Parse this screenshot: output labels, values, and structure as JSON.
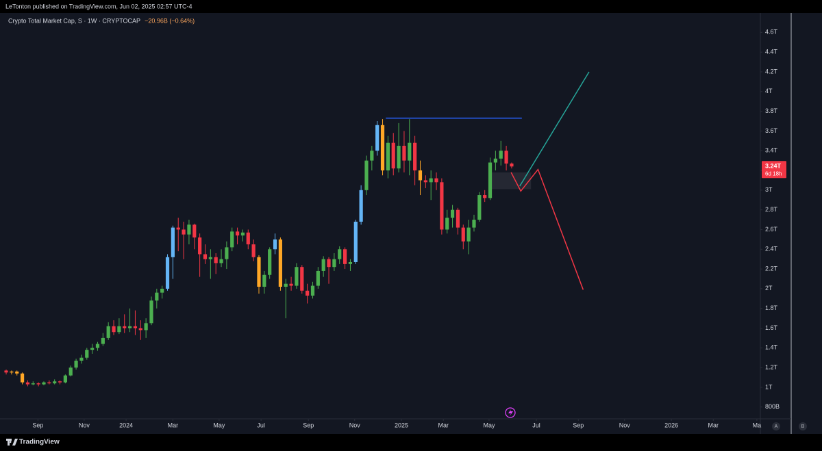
{
  "header": {
    "text": "LeTonton published on TradingView.com, Jun 02, 2025 02:57 UTC-4"
  },
  "footer": {
    "brand": "TradingView",
    "axis_buttons": [
      "A",
      "B"
    ]
  },
  "chart_data": {
    "type": "candlestick",
    "title": "Crypto Total Market Cap, S · 1W · CRYPTOCAP",
    "change": "−20.96B (−0.64%)",
    "last_price_label": "3.24T",
    "countdown": "6d 18h",
    "last_price_color": "#f23645",
    "xlim": [
      -1.15,
      140.25
    ],
    "xticks": [
      {
        "value": 5.9,
        "label": "Sep"
      },
      {
        "value": 14.5,
        "label": "Nov"
      },
      {
        "value": 22.3,
        "label": "2024"
      },
      {
        "value": 31.0,
        "label": "Mar"
      },
      {
        "value": 39.6,
        "label": "May"
      },
      {
        "value": 47.4,
        "label": "Jul"
      },
      {
        "value": 56.2,
        "label": "Sep"
      },
      {
        "value": 64.8,
        "label": "Nov"
      },
      {
        "value": 73.5,
        "label": "2025"
      },
      {
        "value": 81.3,
        "label": "Mar"
      },
      {
        "value": 89.8,
        "label": "May"
      },
      {
        "value": 98.6,
        "label": "Jul"
      },
      {
        "value": 106.4,
        "label": "Sep"
      },
      {
        "value": 115.0,
        "label": "Nov"
      },
      {
        "value": 123.7,
        "label": "2026"
      },
      {
        "value": 131.5,
        "label": "Mar"
      },
      {
        "value": 139.6,
        "label": "Ma"
      }
    ],
    "ylim": [
      0.68,
      4.79
    ],
    "yticks": [
      {
        "value": 4.6,
        "label": "4.6T"
      },
      {
        "value": 4.4,
        "label": "4.4T"
      },
      {
        "value": 4.2,
        "label": "4.2T"
      },
      {
        "value": 4.0,
        "label": "4T"
      },
      {
        "value": 3.8,
        "label": "3.8T"
      },
      {
        "value": 3.6,
        "label": "3.6T"
      },
      {
        "value": 3.4,
        "label": "3.4T"
      },
      {
        "value": 3.2,
        "label": "3.2T"
      },
      {
        "value": 3.0,
        "label": "3T"
      },
      {
        "value": 2.8,
        "label": "2.8T"
      },
      {
        "value": 2.6,
        "label": "2.6T"
      },
      {
        "value": 2.4,
        "label": "2.4T"
      },
      {
        "value": 2.2,
        "label": "2.2T"
      },
      {
        "value": 2.0,
        "label": "2T"
      },
      {
        "value": 1.8,
        "label": "1.8T"
      },
      {
        "value": 1.6,
        "label": "1.6T"
      },
      {
        "value": 1.4,
        "label": "1.4T"
      },
      {
        "value": 1.2,
        "label": "1.2T"
      },
      {
        "value": 1.0,
        "label": "1T"
      },
      {
        "value": 0.8,
        "label": "800B"
      }
    ],
    "grid": false,
    "open": [
      1.17,
      1.15,
      1.16,
      1.14,
      1.05,
      1.03,
      1.04,
      1.03,
      1.05,
      1.04,
      1.06,
      1.05,
      1.12,
      1.2,
      1.27,
      1.3,
      1.38,
      1.4,
      1.44,
      1.5,
      1.62,
      1.56,
      1.62,
      1.6,
      1.62,
      1.6,
      1.58,
      1.65,
      1.88,
      1.96,
      2.0,
      2.32,
      2.62,
      2.6,
      2.55,
      2.65,
      2.52,
      2.35,
      2.3,
      2.32,
      2.26,
      2.3,
      2.42,
      2.58,
      2.54,
      2.57,
      2.45,
      2.32,
      2.02,
      2.14,
      2.4,
      2.5,
      2.02,
      2.05,
      2.03,
      2.22,
      1.98,
      1.93,
      2.03,
      2.18,
      2.3,
      2.22,
      2.3,
      2.4,
      2.25,
      2.27,
      2.68,
      3.0,
      3.3,
      3.4,
      3.66,
      3.2,
      3.48,
      3.22,
      3.45,
      3.3,
      3.48,
      3.2,
      3.1,
      3.08,
      3.12,
      3.08,
      2.6,
      2.72,
      2.8,
      2.62,
      2.48,
      2.62,
      2.7,
      2.95,
      2.92,
      3.28,
      3.32,
      3.4,
      3.27
    ],
    "high": [
      1.18,
      1.17,
      1.17,
      1.15,
      1.07,
      1.06,
      1.05,
      1.06,
      1.07,
      1.08,
      1.07,
      1.13,
      1.22,
      1.29,
      1.33,
      1.4,
      1.44,
      1.46,
      1.55,
      1.66,
      1.68,
      1.7,
      1.74,
      1.8,
      1.78,
      1.68,
      1.7,
      1.92,
      2.0,
      2.03,
      2.35,
      2.64,
      2.72,
      2.68,
      2.7,
      2.66,
      2.56,
      2.45,
      2.4,
      2.36,
      2.4,
      2.48,
      2.62,
      2.62,
      2.6,
      2.6,
      2.5,
      2.34,
      2.18,
      2.42,
      2.56,
      2.52,
      2.1,
      2.12,
      2.26,
      2.24,
      2.05,
      2.07,
      2.22,
      2.33,
      2.32,
      2.36,
      2.43,
      2.42,
      2.3,
      2.7,
      3.05,
      3.35,
      3.45,
      3.7,
      3.72,
      3.55,
      3.58,
      3.68,
      3.6,
      3.72,
      3.55,
      3.3,
      3.15,
      3.2,
      3.18,
      3.12,
      2.8,
      2.85,
      2.82,
      2.65,
      2.7,
      2.75,
      2.98,
      3.0,
      3.33,
      3.4,
      3.5,
      3.45,
      3.28
    ],
    "low": [
      1.13,
      1.13,
      1.12,
      1.03,
      1.01,
      1.02,
      1.01,
      1.02,
      1.03,
      1.03,
      1.03,
      1.04,
      1.11,
      1.18,
      1.24,
      1.28,
      1.34,
      1.37,
      1.42,
      1.48,
      1.53,
      1.54,
      1.55,
      1.56,
      1.53,
      1.48,
      1.5,
      1.63,
      1.8,
      1.9,
      1.98,
      2.1,
      2.38,
      2.3,
      2.45,
      2.4,
      2.12,
      2.25,
      2.1,
      2.15,
      2.22,
      2.2,
      2.38,
      2.45,
      2.48,
      2.4,
      2.28,
      1.95,
      1.95,
      2.1,
      2.35,
      1.98,
      1.7,
      1.98,
      2.0,
      1.95,
      1.85,
      1.9,
      2.0,
      2.12,
      2.05,
      2.18,
      2.25,
      2.2,
      2.18,
      2.25,
      2.65,
      2.95,
      3.2,
      3.35,
      3.15,
      3.12,
      3.15,
      3.18,
      3.18,
      3.15,
      3.05,
      2.95,
      3.02,
      2.9,
      3.0,
      2.55,
      2.56,
      2.62,
      2.55,
      2.4,
      2.35,
      2.58,
      2.68,
      2.88,
      2.9,
      3.2,
      3.25,
      3.2,
      3.22
    ],
    "close": [
      1.15,
      1.16,
      1.14,
      1.05,
      1.03,
      1.04,
      1.03,
      1.05,
      1.04,
      1.06,
      1.05,
      1.12,
      1.2,
      1.27,
      1.3,
      1.38,
      1.4,
      1.44,
      1.5,
      1.62,
      1.56,
      1.62,
      1.6,
      1.62,
      1.6,
      1.58,
      1.65,
      1.88,
      1.96,
      2.0,
      2.32,
      2.62,
      2.6,
      2.55,
      2.65,
      2.52,
      2.35,
      2.3,
      2.32,
      2.26,
      2.3,
      2.42,
      2.58,
      2.54,
      2.57,
      2.45,
      2.32,
      2.02,
      2.14,
      2.4,
      2.5,
      2.02,
      2.05,
      2.03,
      2.22,
      1.98,
      1.93,
      2.03,
      2.18,
      2.3,
      2.22,
      2.3,
      2.4,
      2.25,
      2.27,
      2.68,
      3.0,
      3.3,
      3.4,
      3.66,
      3.2,
      3.48,
      3.22,
      3.45,
      3.3,
      3.48,
      3.2,
      3.1,
      3.08,
      3.12,
      3.08,
      2.6,
      2.72,
      2.8,
      2.62,
      2.48,
      2.62,
      2.7,
      2.95,
      2.92,
      3.28,
      3.32,
      3.4,
      3.27,
      3.24
    ],
    "colors": [
      "#f23645",
      "#ffa726",
      "#ffa726",
      "#ffa726",
      "#f23645",
      "#4caf50",
      "#f23645",
      "#4caf50",
      "#f23645",
      "#4caf50",
      "#f23645",
      "#4caf50",
      "#4caf50",
      "#4caf50",
      "#4caf50",
      "#4caf50",
      "#4caf50",
      "#4caf50",
      "#4caf50",
      "#4caf50",
      "#f23645",
      "#4caf50",
      "#f23645",
      "#4caf50",
      "#f23645",
      "#f23645",
      "#4caf50",
      "#4caf50",
      "#4caf50",
      "#4caf50",
      "#64b5f6",
      "#64b5f6",
      "#f23645",
      "#f23645",
      "#4caf50",
      "#f23645",
      "#f23645",
      "#f23645",
      "#4caf50",
      "#f23645",
      "#4caf50",
      "#4caf50",
      "#4caf50",
      "#f23645",
      "#4caf50",
      "#f23645",
      "#f23645",
      "#ffa726",
      "#4caf50",
      "#4caf50",
      "#64b5f6",
      "#ffa726",
      "#4caf50",
      "#f23645",
      "#4caf50",
      "#f23645",
      "#f23645",
      "#4caf50",
      "#4caf50",
      "#4caf50",
      "#f23645",
      "#4caf50",
      "#4caf50",
      "#f23645",
      "#4caf50",
      "#64b5f6",
      "#64b5f6",
      "#4caf50",
      "#4caf50",
      "#64b5f6",
      "#ffa726",
      "#4caf50",
      "#f23645",
      "#4caf50",
      "#f23645",
      "#4caf50",
      "#f23645",
      "#ffa726",
      "#f23645",
      "#4caf50",
      "#f23645",
      "#f23645",
      "#4caf50",
      "#4caf50",
      "#f23645",
      "#f23645",
      "#4caf50",
      "#4caf50",
      "#4caf50",
      "#f23645",
      "#4caf50",
      "#4caf50",
      "#4caf50",
      "#f23645",
      "#f23645"
    ],
    "drawings": [
      {
        "color": "#2962ff",
        "points": [
          [
            70.6,
            3.73
          ],
          [
            95.9,
            3.73
          ]
        ]
      },
      {
        "color": "#26a69a",
        "points": [
          [
            95.5,
            3.04
          ],
          [
            108.4,
            4.2
          ]
        ]
      },
      {
        "color": "#f23645",
        "points": [
          [
            93.9,
            3.18
          ],
          [
            95.7,
            2.99
          ],
          [
            98.9,
            3.21
          ],
          [
            107.3,
            1.99
          ]
        ]
      }
    ],
    "box": {
      "color": "#787b86",
      "x": [
        90.3,
        97.6
      ],
      "y": [
        3.01,
        3.18
      ]
    }
  }
}
